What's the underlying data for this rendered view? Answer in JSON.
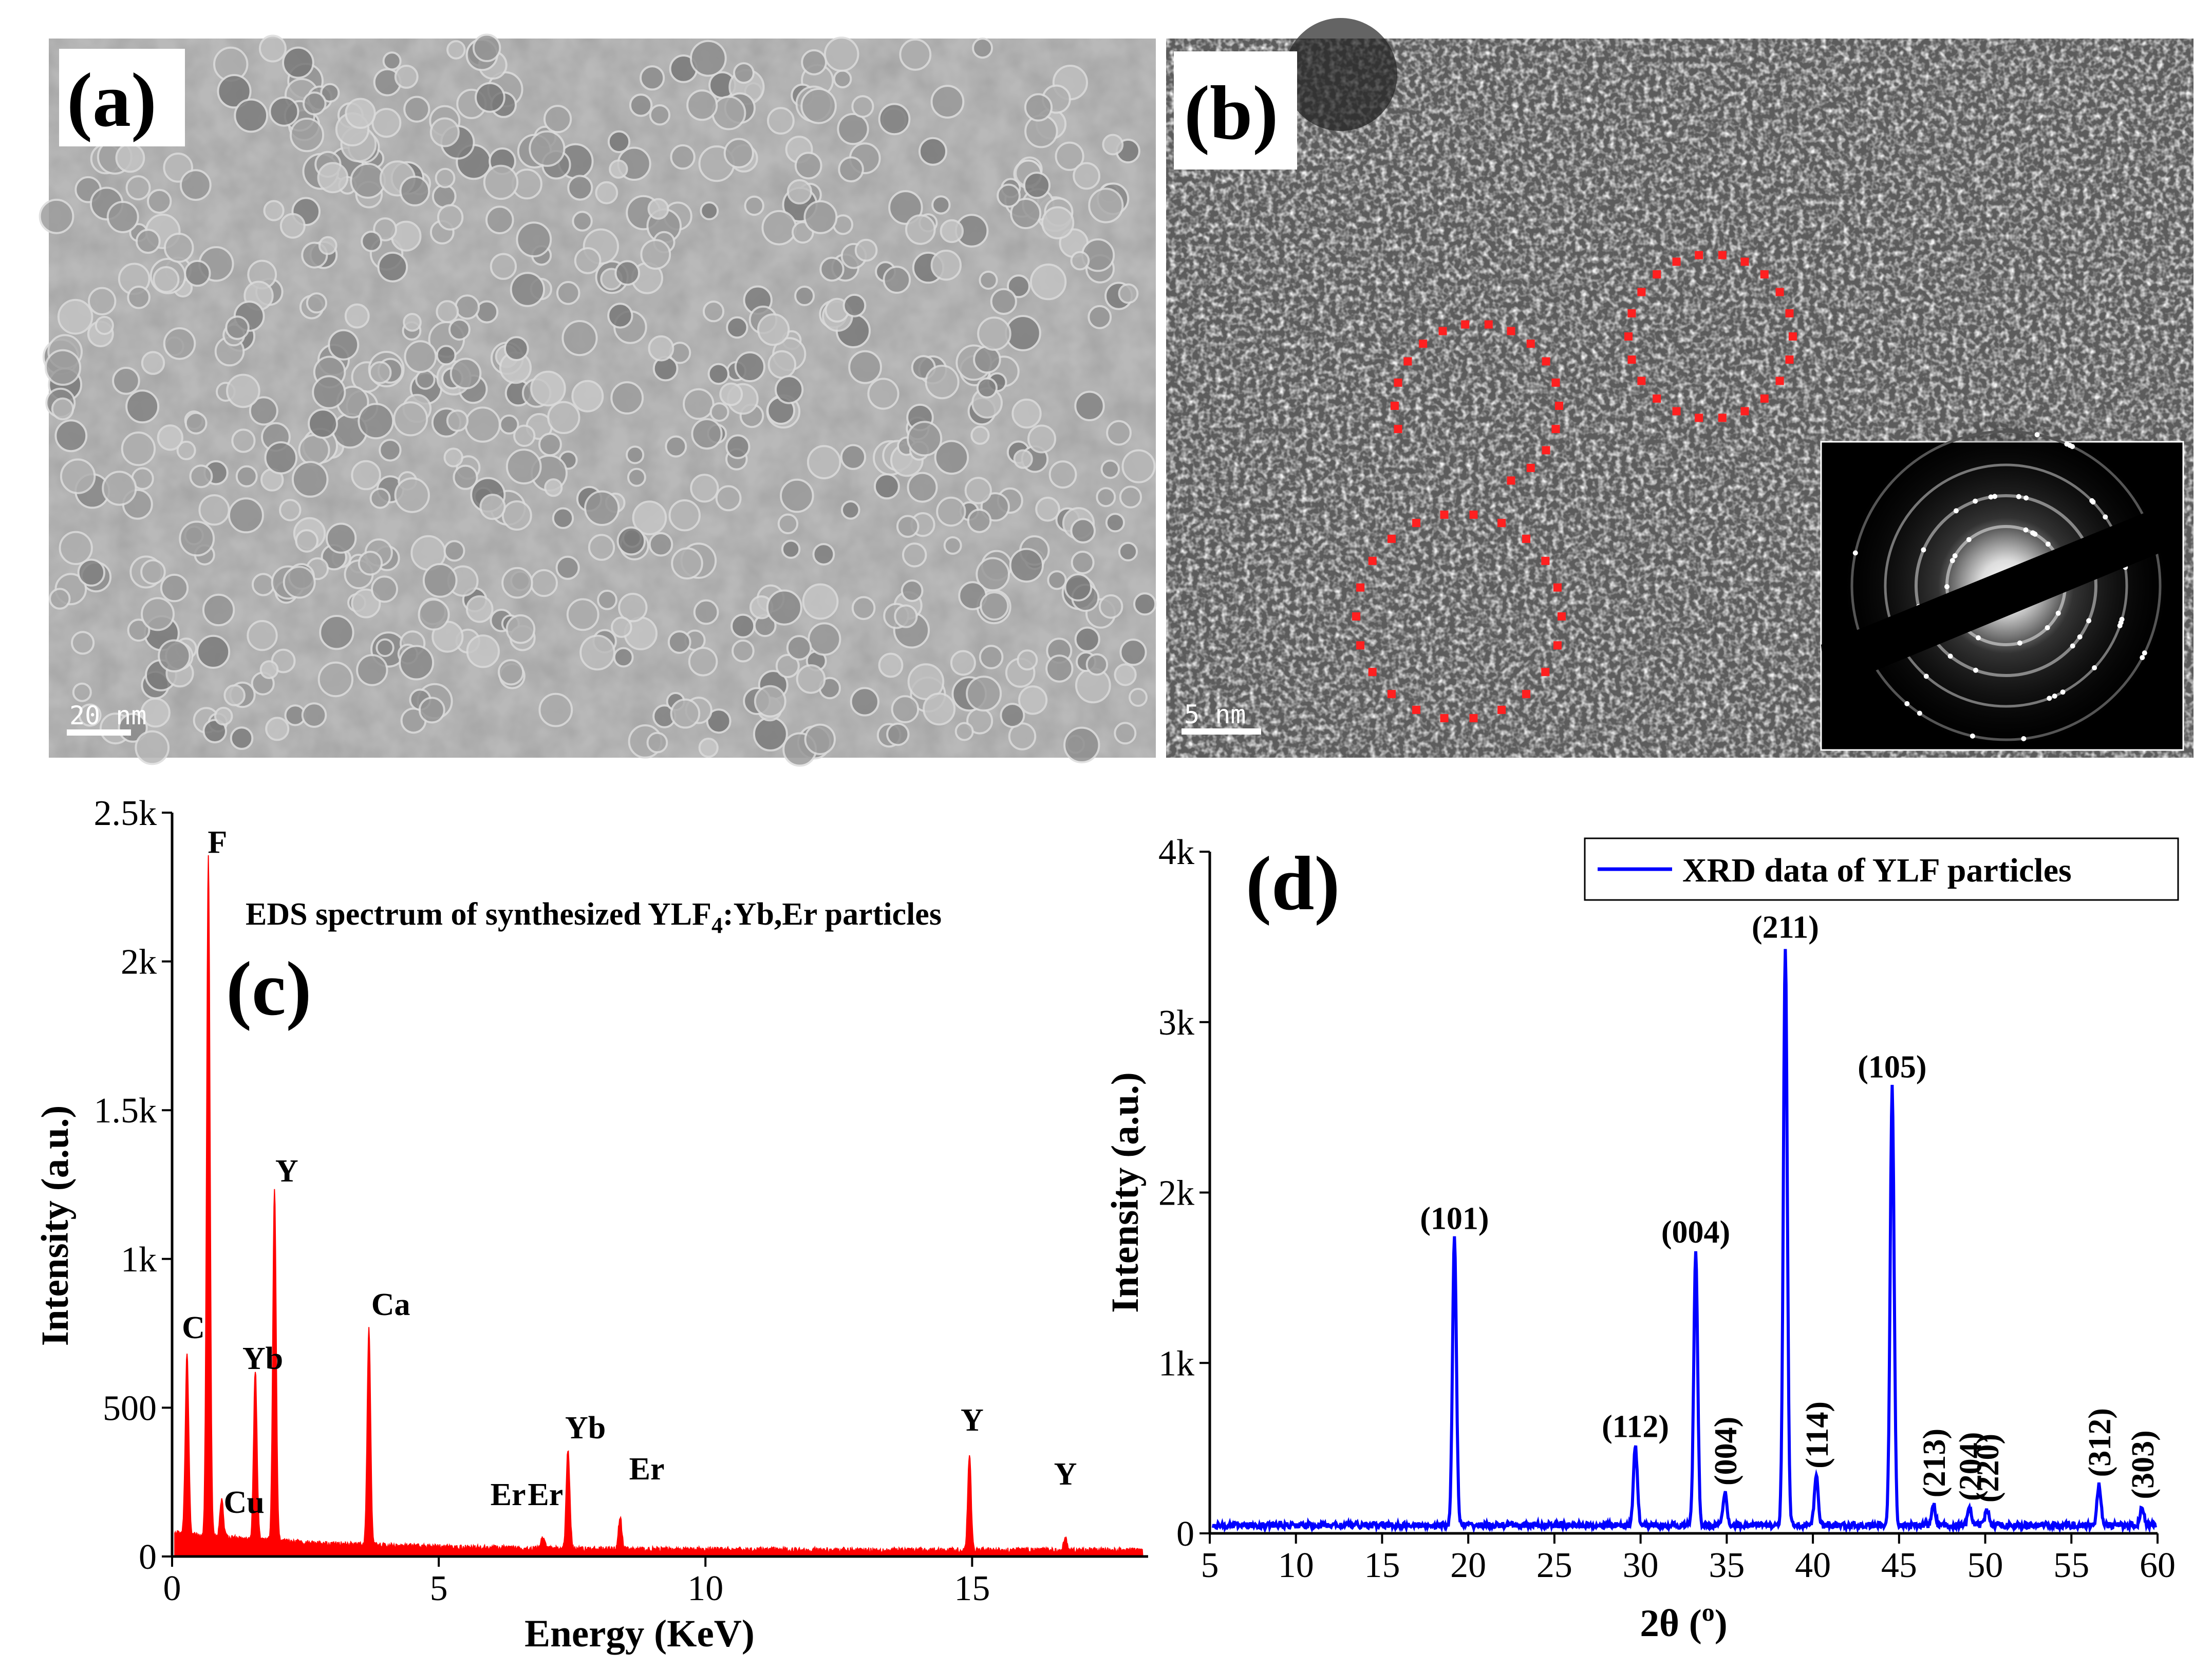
{
  "panels": {
    "a": {
      "tag": "(a)",
      "scale_bar": "20 nm"
    },
    "b": {
      "tag": "(b)",
      "scale_bar": "5 nm"
    },
    "c": {
      "tag": "(c)",
      "title": "EDS spectrum of synthesized YLF",
      "title_sub": "4",
      "title_tail": ":Yb,Er particles"
    },
    "d": {
      "tag": "(d)",
      "legend": "XRD data of YLF particles"
    }
  },
  "colors": {
    "eds": "#ff0000",
    "xrd": "#0000ff",
    "marker": "#ff2020"
  },
  "chart_data": [
    {
      "type": "area",
      "panel": "c",
      "xlabel": "Energy (KeV)",
      "ylabel": "Intensity (a.u.)",
      "xlim": [
        0,
        18.3
      ],
      "ylim": [
        0,
        2500
      ],
      "xticks": [
        {
          "v": 0,
          "l": "0"
        },
        {
          "v": 5,
          "l": "5"
        },
        {
          "v": 10,
          "l": "10"
        },
        {
          "v": 15,
          "l": "15"
        }
      ],
      "yticks": [
        {
          "v": 0,
          "l": "0"
        },
        {
          "v": 500,
          "l": "500"
        },
        {
          "v": 1000,
          "l": "1k"
        },
        {
          "v": 1500,
          "l": "1.5k"
        },
        {
          "v": 2000,
          "l": "2k"
        },
        {
          "v": 2500,
          "l": "2.5k"
        }
      ],
      "peaks": [
        {
          "label": "C",
          "x": 0.28,
          "y": 610
        },
        {
          "label": "F",
          "x": 0.68,
          "y": 2290
        },
        {
          "label": "Cu",
          "x": 0.93,
          "y": 130
        },
        {
          "label": "Yb",
          "x": 1.56,
          "y": 570
        },
        {
          "label": "Y",
          "x": 1.92,
          "y": 1180
        },
        {
          "label": "Ca",
          "x": 3.69,
          "y": 730
        },
        {
          "label": "Er",
          "x": 6.95,
          "y": 40
        },
        {
          "label": "Er",
          "x": 7.45,
          "y": 50
        },
        {
          "label": "Yb",
          "x": 7.42,
          "y": 300
        },
        {
          "label": "Er",
          "x": 8.4,
          "y": 110
        },
        {
          "label": "Y",
          "x": 14.95,
          "y": 320
        },
        {
          "label": "Y",
          "x": 16.75,
          "y": 40
        }
      ]
    },
    {
      "type": "line",
      "panel": "d",
      "xlabel": "2θ (",
      "xlabel_sup": "o",
      "xlabel_tail": ")",
      "ylabel": "Intensity (a.u.)",
      "xlim": [
        5,
        60
      ],
      "ylim": [
        0,
        4000
      ],
      "xticks": [
        {
          "v": 5,
          "l": "5"
        },
        {
          "v": 10,
          "l": "10"
        },
        {
          "v": 15,
          "l": "15"
        },
        {
          "v": 20,
          "l": "20"
        },
        {
          "v": 25,
          "l": "25"
        },
        {
          "v": 30,
          "l": "30"
        },
        {
          "v": 35,
          "l": "35"
        },
        {
          "v": 40,
          "l": "40"
        },
        {
          "v": 45,
          "l": "45"
        },
        {
          "v": 50,
          "l": "50"
        },
        {
          "v": 55,
          "l": "55"
        },
        {
          "v": 60,
          "l": "60"
        }
      ],
      "yticks": [
        {
          "v": 0,
          "l": "0"
        },
        {
          "v": 1000,
          "l": "1k"
        },
        {
          "v": 2000,
          "l": "2k"
        },
        {
          "v": 3000,
          "l": "3k"
        },
        {
          "v": 4000,
          "l": "4k"
        }
      ],
      "series": [
        {
          "name": "XRD data of YLF particles"
        }
      ],
      "peaks": [
        {
          "label": "(101)",
          "x": 19.2,
          "y": 1680
        },
        {
          "label": "(112)",
          "x": 29.7,
          "y": 460
        },
        {
          "label": "(004)",
          "x": 33.2,
          "y": 1600
        },
        {
          "label": "(004)",
          "x": 34.9,
          "y": 190
        },
        {
          "label": "(211)",
          "x": 38.4,
          "y": 3390
        },
        {
          "label": "(114)",
          "x": 40.2,
          "y": 290
        },
        {
          "label": "(105)",
          "x": 44.6,
          "y": 2570
        },
        {
          "label": "(213)",
          "x": 47.0,
          "y": 120
        },
        {
          "label": "(204)",
          "x": 49.1,
          "y": 100
        },
        {
          "label": "(220)",
          "x": 50.1,
          "y": 90
        },
        {
          "label": "(312)",
          "x": 56.6,
          "y": 240
        },
        {
          "label": "(303)",
          "x": 59.1,
          "y": 110
        }
      ]
    }
  ]
}
